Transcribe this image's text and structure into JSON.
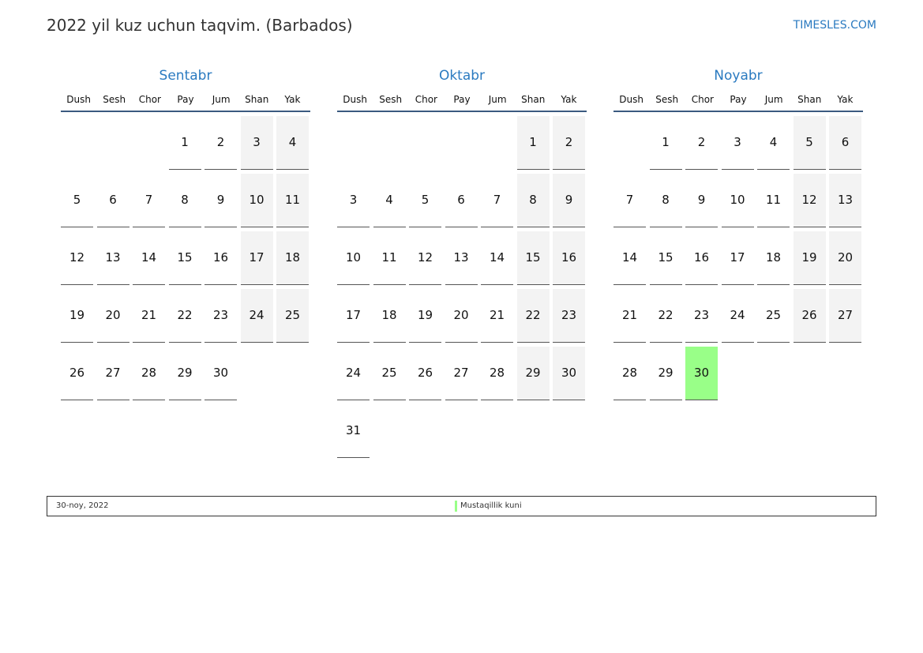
{
  "header": {
    "title": "2022 yil kuz uchun taqvim. (Barbados)",
    "site": "TIMESLES.COM"
  },
  "weekdays": [
    "Dush",
    "Sesh",
    "Chor",
    "Pay",
    "Jum",
    "Shan",
    "Yak"
  ],
  "months": [
    {
      "name": "Sentabr",
      "start_weekday_index": 3,
      "days": 30
    },
    {
      "name": "Oktabr",
      "start_weekday_index": 5,
      "days": 31
    },
    {
      "name": "Noyabr",
      "start_weekday_index": 1,
      "days": 30
    }
  ],
  "holidays": [
    {
      "month": "Noyabr",
      "day": 30,
      "date_label": "30-noy, 2022",
      "name": "Mustaqillik kuni",
      "color": "#99ff88"
    }
  ],
  "colors": {
    "accent": "#2a7ac0",
    "weekend": "#f3f3f3",
    "header_line": "#3b5a80"
  }
}
